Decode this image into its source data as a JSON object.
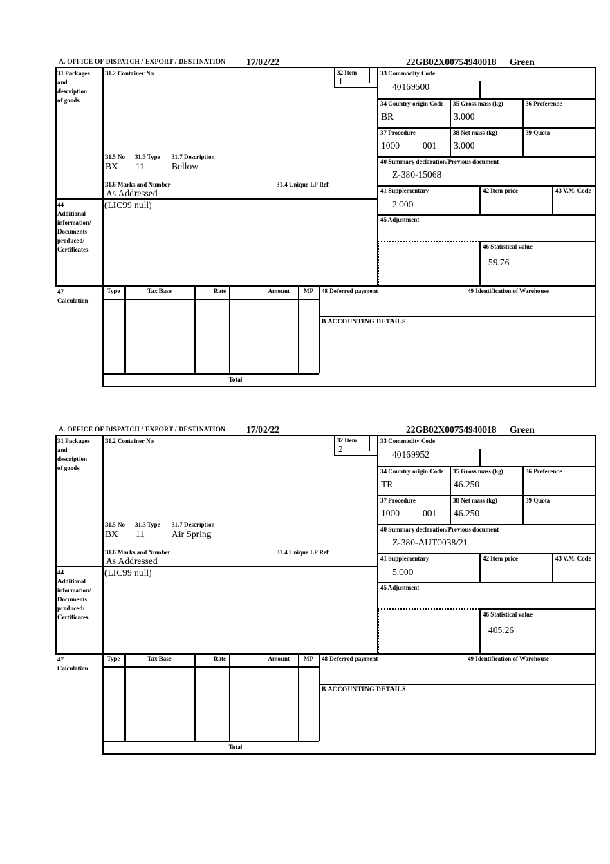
{
  "form": {
    "section_a_label": "A.  OFFICE OF DISPATCH / EXPORT / DESTINATION",
    "date": "17/02/22",
    "entry_number": "22GB02X00754940018",
    "route": "Green",
    "labels": {
      "box31": [
        "31 Packages",
        "and",
        "description",
        "of goods"
      ],
      "box31_2": "31.2 Container No",
      "box31_5": "31.5 No",
      "box31_3": "31.3 Type",
      "box31_7": "31.7 Description",
      "box31_6": "31.6 Marks and Number",
      "box31_4": "31.4 Unique LP Ref",
      "box32": "32 Item",
      "box33": "33 Commodity Code",
      "box34": "34 Country origin Code",
      "box35": "35 Gross mass (kg)",
      "box36": "36 Preference",
      "box37": "37 Procedure",
      "box38": "38 Net mass (kg)",
      "box39": "39 Quota",
      "box40": "40 Summary declaration/Previous document",
      "box41": "41 Supplementary",
      "box42": "42 Item price",
      "box43": "43 V.M. Code",
      "box44": [
        "44",
        "Additional",
        "information/",
        "Documents",
        "produced/",
        "Certificates"
      ],
      "box45": "45 Adjustment",
      "box46": "46 Statistical value",
      "box47": [
        "47",
        "Calculation"
      ],
      "box48": "48 Deferred payment",
      "box49": "49 Identification of Warehouse",
      "accounting": "B ACCOUNTING DETAILS",
      "total": "Total"
    },
    "tax_table_headers": {
      "type": "Type",
      "tax_base": "Tax Base",
      "rate": "Rate",
      "amount": "Amount",
      "mp": "MP"
    }
  },
  "items": [
    {
      "item_no": "1",
      "commodity_code": "40169500",
      "country_origin": "BR",
      "gross_mass": "3.000",
      "procedure_code": "1000",
      "procedure_additional": "001",
      "net_mass": "3.000",
      "previous_document": "Z-380-15068",
      "supplementary": "2.000",
      "package_no": "BX",
      "package_type": "11",
      "description": "Bellow",
      "marks_and_number": "As Addressed",
      "additional_info": "(LIC99 null)",
      "statistical_value": "59.76"
    },
    {
      "item_no": "2",
      "commodity_code": "40169952",
      "country_origin": "TR",
      "gross_mass": "46.250",
      "procedure_code": "1000",
      "procedure_additional": "001",
      "net_mass": "46.250",
      "previous_document": "Z-380-AUT0038/21",
      "supplementary": "5.000",
      "package_no": "BX",
      "package_type": "11",
      "description": "Air Spring",
      "marks_and_number": "As Addressed",
      "additional_info": "(LIC99 null)",
      "statistical_value": "405.26"
    }
  ]
}
